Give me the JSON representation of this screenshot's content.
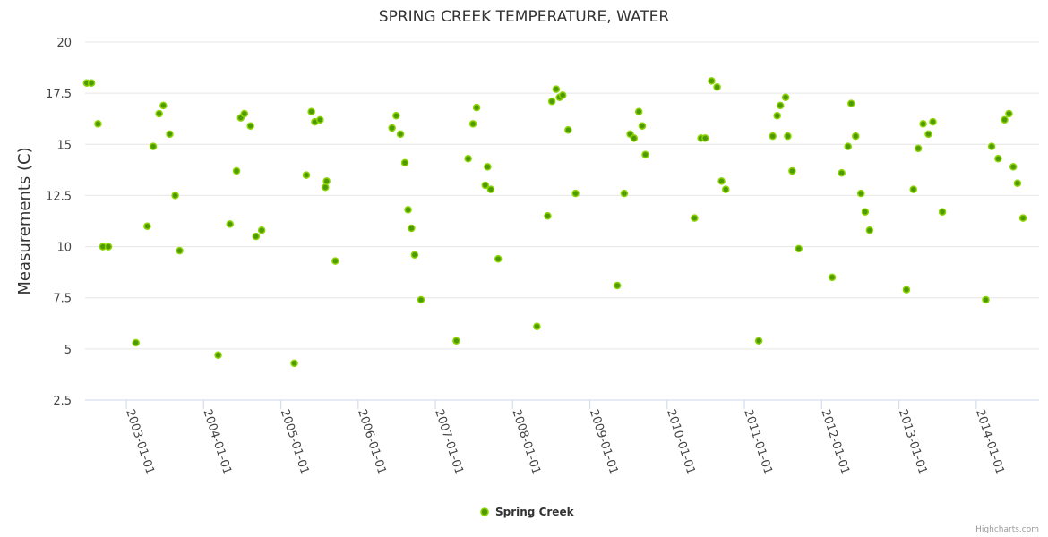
{
  "credit": "Highcharts.com",
  "colors": {
    "marker_fill": "#4f9a00",
    "marker_stroke": "#8bd400"
  },
  "chart_data": {
    "type": "scatter",
    "title": "SPRING CREEK TEMPERATURE, WATER",
    "xlabel": "",
    "ylabel": "Measurements (C)",
    "ylim": [
      2.5,
      20
    ],
    "yticks": [
      2.5,
      5,
      7.5,
      10,
      12.5,
      15,
      17.5,
      20
    ],
    "xlim": [
      "2002-06-20",
      "2014-10-25"
    ],
    "xticks": [
      "2003-01-01",
      "2004-01-01",
      "2005-01-01",
      "2006-01-01",
      "2007-01-01",
      "2008-01-01",
      "2009-01-01",
      "2010-01-01",
      "2011-01-01",
      "2012-01-01",
      "2013-01-01",
      "2014-01-01"
    ],
    "grid": true,
    "legend": "bottom-center",
    "series": [
      {
        "name": "Spring Creek",
        "points": [
          {
            "x": "2002-06-28",
            "y": 18.0
          },
          {
            "x": "2002-07-20",
            "y": 18.0
          },
          {
            "x": "2002-08-20",
            "y": 16.0
          },
          {
            "x": "2002-09-12",
            "y": 10.0
          },
          {
            "x": "2002-10-08",
            "y": 10.0
          },
          {
            "x": "2003-02-15",
            "y": 5.3
          },
          {
            "x": "2003-04-10",
            "y": 11.0
          },
          {
            "x": "2003-05-08",
            "y": 14.9
          },
          {
            "x": "2003-06-05",
            "y": 16.5
          },
          {
            "x": "2003-06-25",
            "y": 16.9
          },
          {
            "x": "2003-07-25",
            "y": 15.5
          },
          {
            "x": "2003-08-20",
            "y": 12.5
          },
          {
            "x": "2003-09-10",
            "y": 9.8
          },
          {
            "x": "2004-03-10",
            "y": 4.7
          },
          {
            "x": "2004-05-05",
            "y": 11.1
          },
          {
            "x": "2004-06-05",
            "y": 13.7
          },
          {
            "x": "2004-06-25",
            "y": 16.3
          },
          {
            "x": "2004-07-12",
            "y": 16.5
          },
          {
            "x": "2004-08-10",
            "y": 15.9
          },
          {
            "x": "2004-09-05",
            "y": 10.5
          },
          {
            "x": "2004-10-02",
            "y": 10.8
          },
          {
            "x": "2005-03-05",
            "y": 4.3
          },
          {
            "x": "2005-05-01",
            "y": 13.5
          },
          {
            "x": "2005-05-25",
            "y": 16.6
          },
          {
            "x": "2005-06-10",
            "y": 16.1
          },
          {
            "x": "2005-07-05",
            "y": 16.2
          },
          {
            "x": "2005-07-30",
            "y": 12.9
          },
          {
            "x": "2005-08-05",
            "y": 13.2
          },
          {
            "x": "2005-09-15",
            "y": 9.3
          },
          {
            "x": "2006-06-10",
            "y": 15.8
          },
          {
            "x": "2006-06-30",
            "y": 16.4
          },
          {
            "x": "2006-07-20",
            "y": 15.5
          },
          {
            "x": "2006-08-10",
            "y": 14.1
          },
          {
            "x": "2006-08-25",
            "y": 11.8
          },
          {
            "x": "2006-09-10",
            "y": 10.9
          },
          {
            "x": "2006-09-25",
            "y": 9.6
          },
          {
            "x": "2006-10-25",
            "y": 7.4
          },
          {
            "x": "2007-04-10",
            "y": 5.4
          },
          {
            "x": "2007-06-05",
            "y": 14.3
          },
          {
            "x": "2007-06-28",
            "y": 16.0
          },
          {
            "x": "2007-07-15",
            "y": 16.8
          },
          {
            "x": "2007-08-25",
            "y": 13.0
          },
          {
            "x": "2007-09-05",
            "y": 13.9
          },
          {
            "x": "2007-09-20",
            "y": 12.8
          },
          {
            "x": "2007-10-25",
            "y": 9.4
          },
          {
            "x": "2008-04-25",
            "y": 6.1
          },
          {
            "x": "2008-06-15",
            "y": 11.5
          },
          {
            "x": "2008-07-05",
            "y": 17.1
          },
          {
            "x": "2008-07-25",
            "y": 17.7
          },
          {
            "x": "2008-08-10",
            "y": 17.3
          },
          {
            "x": "2008-08-25",
            "y": 17.4
          },
          {
            "x": "2008-09-20",
            "y": 15.7
          },
          {
            "x": "2008-10-25",
            "y": 12.6
          },
          {
            "x": "2009-05-10",
            "y": 8.1
          },
          {
            "x": "2009-06-12",
            "y": 12.6
          },
          {
            "x": "2009-07-10",
            "y": 15.5
          },
          {
            "x": "2009-07-28",
            "y": 15.3
          },
          {
            "x": "2009-08-20",
            "y": 16.6
          },
          {
            "x": "2009-09-05",
            "y": 15.9
          },
          {
            "x": "2009-09-20",
            "y": 14.5
          },
          {
            "x": "2010-05-10",
            "y": 11.4
          },
          {
            "x": "2010-06-10",
            "y": 15.3
          },
          {
            "x": "2010-06-30",
            "y": 15.3
          },
          {
            "x": "2010-07-30",
            "y": 18.1
          },
          {
            "x": "2010-08-25",
            "y": 17.8
          },
          {
            "x": "2010-09-15",
            "y": 13.2
          },
          {
            "x": "2010-10-05",
            "y": 12.8
          },
          {
            "x": "2011-03-10",
            "y": 5.4
          },
          {
            "x": "2011-05-15",
            "y": 15.4
          },
          {
            "x": "2011-06-05",
            "y": 16.4
          },
          {
            "x": "2011-06-20",
            "y": 16.9
          },
          {
            "x": "2011-07-15",
            "y": 17.3
          },
          {
            "x": "2011-07-25",
            "y": 15.4
          },
          {
            "x": "2011-08-15",
            "y": 13.7
          },
          {
            "x": "2011-09-15",
            "y": 9.9
          },
          {
            "x": "2012-02-20",
            "y": 8.5
          },
          {
            "x": "2012-04-05",
            "y": 13.6
          },
          {
            "x": "2012-05-05",
            "y": 14.9
          },
          {
            "x": "2012-05-20",
            "y": 17.0
          },
          {
            "x": "2012-06-10",
            "y": 15.4
          },
          {
            "x": "2012-07-05",
            "y": 12.6
          },
          {
            "x": "2012-07-25",
            "y": 11.7
          },
          {
            "x": "2012-08-15",
            "y": 10.8
          },
          {
            "x": "2013-02-05",
            "y": 7.9
          },
          {
            "x": "2013-03-10",
            "y": 12.8
          },
          {
            "x": "2013-04-02",
            "y": 14.8
          },
          {
            "x": "2013-04-25",
            "y": 16.0
          },
          {
            "x": "2013-05-20",
            "y": 15.5
          },
          {
            "x": "2013-06-10",
            "y": 16.1
          },
          {
            "x": "2013-07-25",
            "y": 11.7
          },
          {
            "x": "2014-02-15",
            "y": 7.4
          },
          {
            "x": "2014-03-15",
            "y": 14.9
          },
          {
            "x": "2014-04-15",
            "y": 14.3
          },
          {
            "x": "2014-05-15",
            "y": 16.2
          },
          {
            "x": "2014-06-05",
            "y": 16.5
          },
          {
            "x": "2014-06-25",
            "y": 13.9
          },
          {
            "x": "2014-07-15",
            "y": 13.1
          },
          {
            "x": "2014-08-10",
            "y": 11.4
          }
        ]
      }
    ]
  }
}
